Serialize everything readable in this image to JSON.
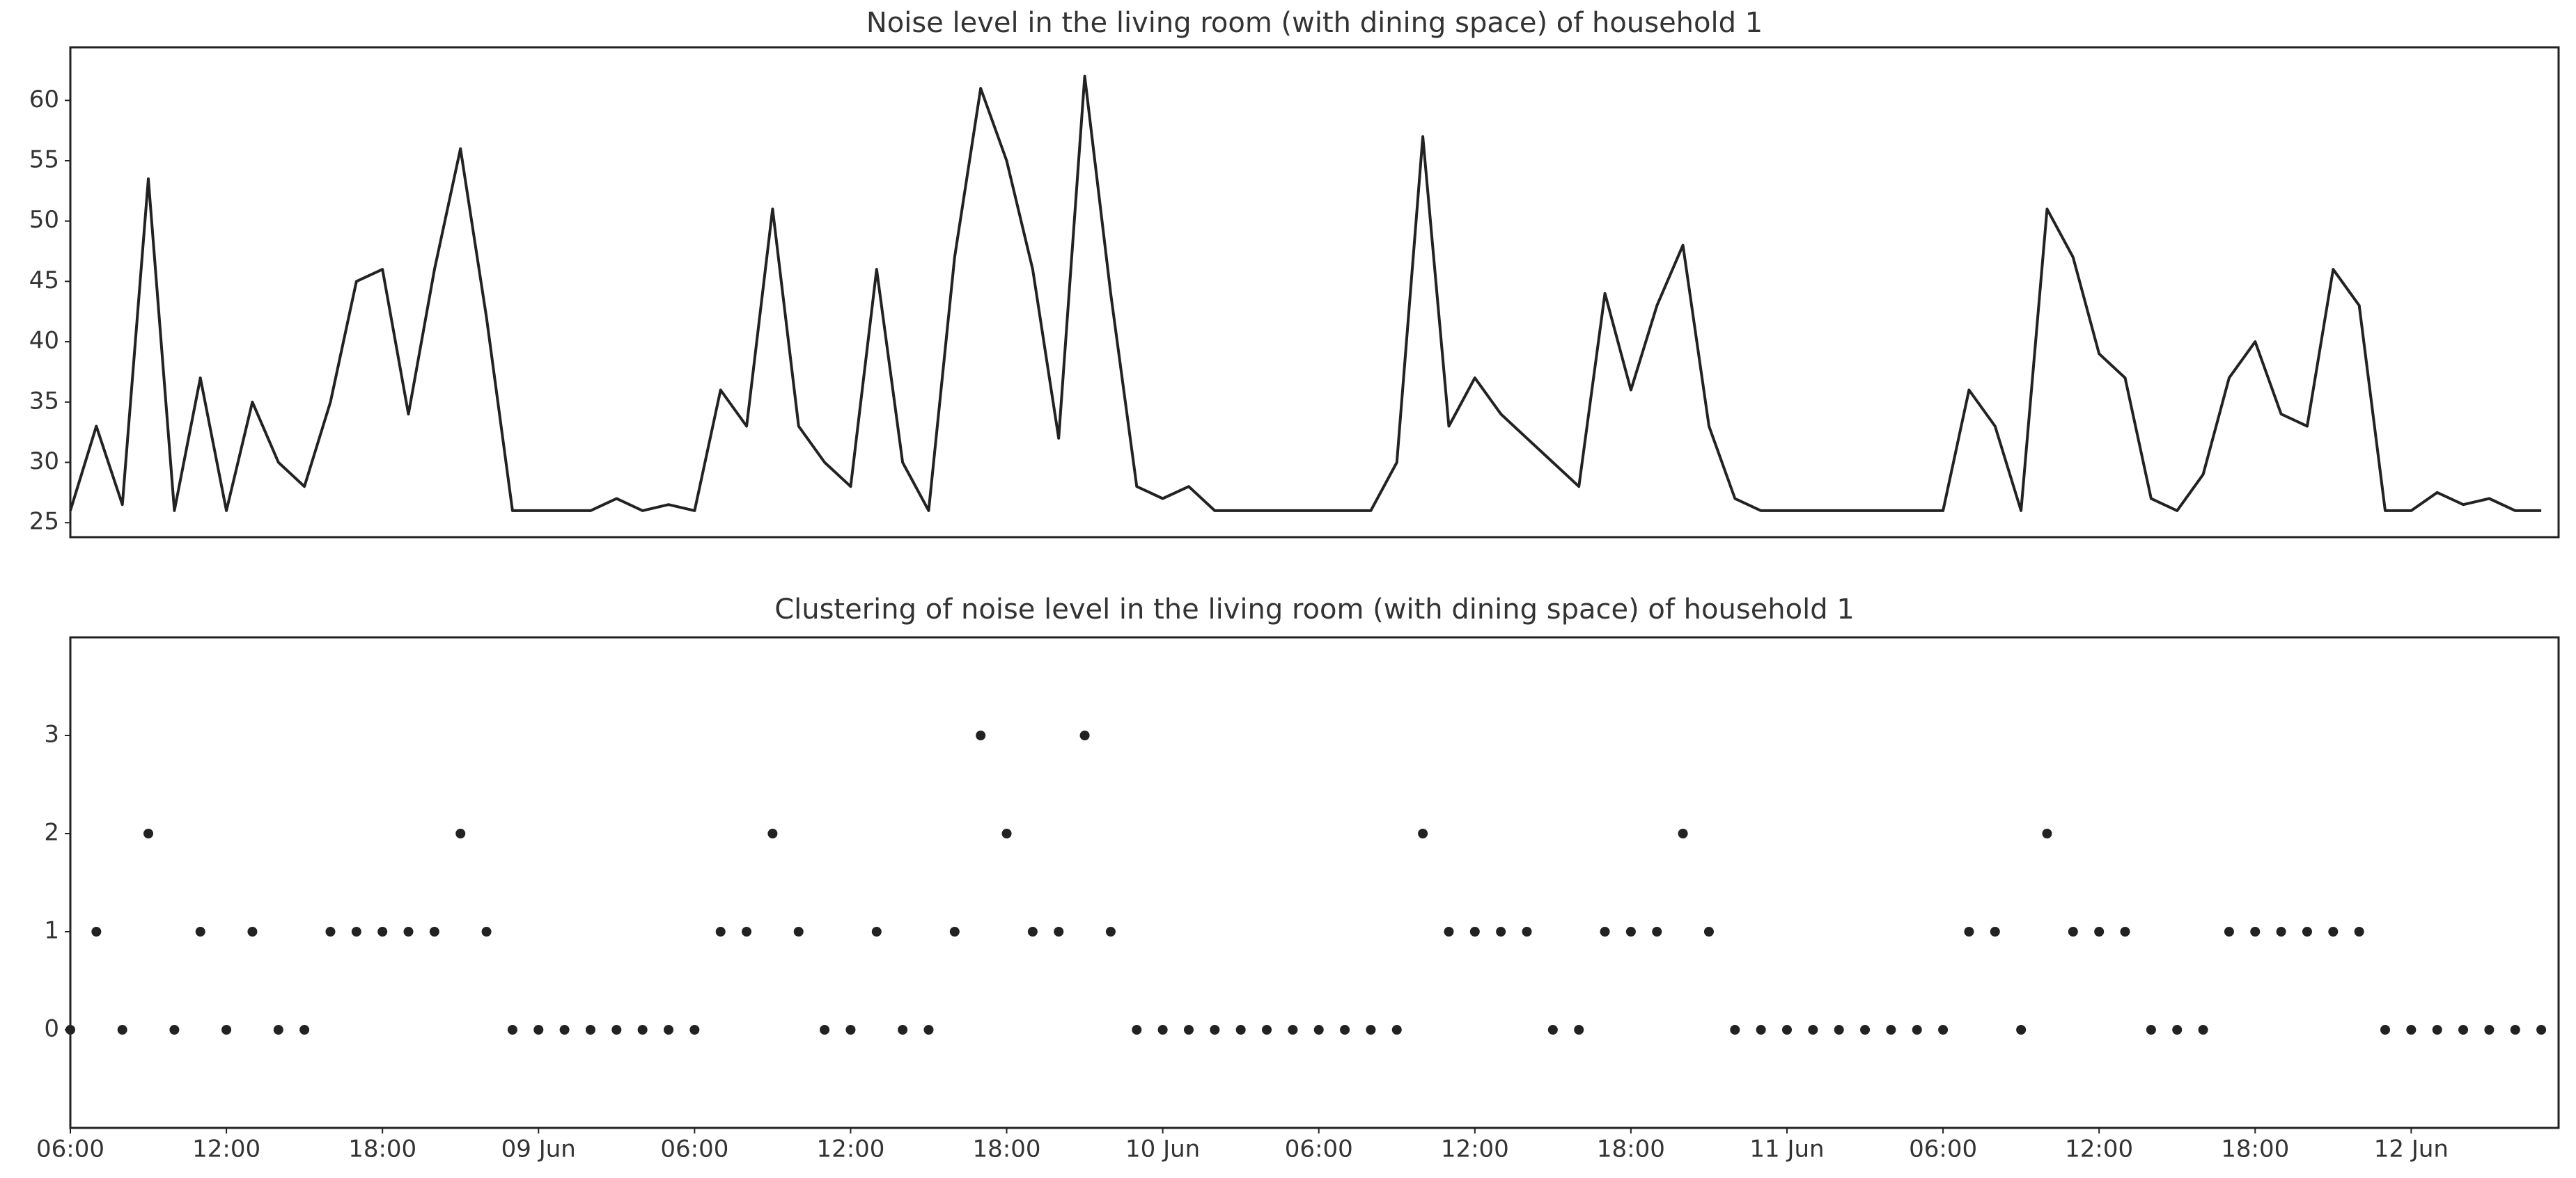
{
  "chart_data": [
    {
      "type": "line",
      "title": "Noise level in the living room (with dining space) of household 1",
      "x": [
        "08 Jun 06:00",
        "08 Jun 07:00",
        "08 Jun 08:00",
        "08 Jun 09:00",
        "08 Jun 10:00",
        "08 Jun 11:00",
        "08 Jun 12:00",
        "08 Jun 13:00",
        "08 Jun 14:00",
        "08 Jun 15:00",
        "08 Jun 16:00",
        "08 Jun 17:00",
        "08 Jun 18:00",
        "08 Jun 19:00",
        "08 Jun 20:00",
        "08 Jun 21:00",
        "08 Jun 22:00",
        "08 Jun 23:00",
        "09 Jun 00:00",
        "09 Jun 01:00",
        "09 Jun 02:00",
        "09 Jun 03:00",
        "09 Jun 04:00",
        "09 Jun 05:00",
        "09 Jun 06:00",
        "09 Jun 07:00",
        "09 Jun 08:00",
        "09 Jun 09:00",
        "09 Jun 10:00",
        "09 Jun 11:00",
        "09 Jun 12:00",
        "09 Jun 13:00",
        "09 Jun 14:00",
        "09 Jun 15:00",
        "09 Jun 16:00",
        "09 Jun 17:00",
        "09 Jun 18:00",
        "09 Jun 19:00",
        "09 Jun 20:00",
        "09 Jun 21:00",
        "09 Jun 22:00",
        "09 Jun 23:00",
        "10 Jun 00:00",
        "10 Jun 01:00",
        "10 Jun 02:00",
        "10 Jun 03:00",
        "10 Jun 04:00",
        "10 Jun 05:00",
        "10 Jun 06:00",
        "10 Jun 07:00",
        "10 Jun 08:00",
        "10 Jun 09:00",
        "10 Jun 10:00",
        "10 Jun 11:00",
        "10 Jun 12:00",
        "10 Jun 13:00",
        "10 Jun 14:00",
        "10 Jun 15:00",
        "10 Jun 16:00",
        "10 Jun 17:00",
        "10 Jun 18:00",
        "10 Jun 19:00",
        "10 Jun 20:00",
        "10 Jun 21:00",
        "10 Jun 22:00",
        "10 Jun 23:00",
        "11 Jun 00:00",
        "11 Jun 01:00",
        "11 Jun 02:00",
        "11 Jun 03:00",
        "11 Jun 04:00",
        "11 Jun 05:00",
        "11 Jun 06:00",
        "11 Jun 07:00",
        "11 Jun 08:00",
        "11 Jun 09:00",
        "11 Jun 10:00",
        "11 Jun 11:00",
        "11 Jun 12:00",
        "11 Jun 13:00",
        "11 Jun 14:00",
        "11 Jun 15:00",
        "11 Jun 16:00",
        "11 Jun 17:00",
        "11 Jun 18:00",
        "11 Jun 19:00",
        "11 Jun 20:00",
        "11 Jun 21:00",
        "11 Jun 22:00",
        "11 Jun 23:00",
        "12 Jun 00:00",
        "12 Jun 01:00",
        "12 Jun 02:00",
        "12 Jun 03:00",
        "12 Jun 04:00",
        "12 Jun 05:00"
      ],
      "values": [
        26,
        33,
        26.5,
        53.5,
        26,
        37,
        26,
        35,
        30,
        28,
        35,
        45,
        46,
        34,
        46,
        56,
        42,
        26,
        26,
        26,
        26,
        27,
        26,
        26.5,
        26,
        36,
        33,
        51,
        33,
        30,
        28,
        46,
        30,
        26,
        47,
        61,
        55,
        46,
        32,
        62,
        44,
        28,
        27,
        28,
        26,
        26,
        26,
        26,
        26,
        26,
        26,
        30,
        57,
        33,
        37,
        34,
        32,
        30,
        28,
        44,
        36,
        43,
        48,
        33,
        27,
        26,
        26,
        26,
        26,
        26,
        26,
        26,
        26,
        36,
        33,
        26,
        51,
        47,
        39,
        37,
        27,
        26,
        29,
        37,
        40,
        34,
        33,
        46,
        43,
        26,
        26,
        27.5,
        26.5,
        27,
        26,
        26
      ],
      "color": "#222222",
      "xlim": [
        "08 Jun 06:00",
        "12 Jun 05:40"
      ],
      "ylim": [
        23.8,
        64.4
      ],
      "yticks": [
        25,
        30,
        35,
        40,
        45,
        50,
        55,
        60
      ]
    },
    {
      "type": "scatter",
      "title": "Clustering of noise level in the living room (with dining space) of household 1",
      "x": [
        "08 Jun 06:00",
        "08 Jun 07:00",
        "08 Jun 08:00",
        "08 Jun 09:00",
        "08 Jun 10:00",
        "08 Jun 11:00",
        "08 Jun 12:00",
        "08 Jun 13:00",
        "08 Jun 14:00",
        "08 Jun 15:00",
        "08 Jun 16:00",
        "08 Jun 17:00",
        "08 Jun 18:00",
        "08 Jun 19:00",
        "08 Jun 20:00",
        "08 Jun 21:00",
        "08 Jun 22:00",
        "08 Jun 23:00",
        "09 Jun 00:00",
        "09 Jun 01:00",
        "09 Jun 02:00",
        "09 Jun 03:00",
        "09 Jun 04:00",
        "09 Jun 05:00",
        "09 Jun 06:00",
        "09 Jun 07:00",
        "09 Jun 08:00",
        "09 Jun 09:00",
        "09 Jun 10:00",
        "09 Jun 11:00",
        "09 Jun 12:00",
        "09 Jun 13:00",
        "09 Jun 14:00",
        "09 Jun 15:00",
        "09 Jun 16:00",
        "09 Jun 17:00",
        "09 Jun 18:00",
        "09 Jun 19:00",
        "09 Jun 20:00",
        "09 Jun 21:00",
        "09 Jun 22:00",
        "09 Jun 23:00",
        "10 Jun 00:00",
        "10 Jun 01:00",
        "10 Jun 02:00",
        "10 Jun 03:00",
        "10 Jun 04:00",
        "10 Jun 05:00",
        "10 Jun 06:00",
        "10 Jun 07:00",
        "10 Jun 08:00",
        "10 Jun 09:00",
        "10 Jun 10:00",
        "10 Jun 11:00",
        "10 Jun 12:00",
        "10 Jun 13:00",
        "10 Jun 14:00",
        "10 Jun 15:00",
        "10 Jun 16:00",
        "10 Jun 17:00",
        "10 Jun 18:00",
        "10 Jun 19:00",
        "10 Jun 20:00",
        "10 Jun 21:00",
        "10 Jun 22:00",
        "10 Jun 23:00",
        "11 Jun 00:00",
        "11 Jun 01:00",
        "11 Jun 02:00",
        "11 Jun 03:00",
        "11 Jun 04:00",
        "11 Jun 05:00",
        "11 Jun 06:00",
        "11 Jun 07:00",
        "11 Jun 08:00",
        "11 Jun 09:00",
        "11 Jun 10:00",
        "11 Jun 11:00",
        "11 Jun 12:00",
        "11 Jun 13:00",
        "11 Jun 14:00",
        "11 Jun 15:00",
        "11 Jun 16:00",
        "11 Jun 17:00",
        "11 Jun 18:00",
        "11 Jun 19:00",
        "11 Jun 20:00",
        "11 Jun 21:00",
        "11 Jun 22:00",
        "11 Jun 23:00",
        "12 Jun 00:00",
        "12 Jun 01:00",
        "12 Jun 02:00",
        "12 Jun 03:00",
        "12 Jun 04:00",
        "12 Jun 05:00"
      ],
      "values": [
        0,
        1,
        0,
        2,
        0,
        1,
        0,
        1,
        0,
        0,
        1,
        1,
        1,
        1,
        1,
        2,
        1,
        0,
        0,
        0,
        0,
        0,
        0,
        0,
        0,
        1,
        1,
        2,
        1,
        0,
        0,
        1,
        0,
        0,
        1,
        3,
        2,
        1,
        1,
        3,
        1,
        0,
        0,
        0,
        0,
        0,
        0,
        0,
        0,
        0,
        0,
        0,
        2,
        1,
        1,
        1,
        1,
        0,
        0,
        1,
        1,
        1,
        2,
        1,
        0,
        0,
        0,
        0,
        0,
        0,
        0,
        0,
        0,
        1,
        1,
        0,
        2,
        1,
        1,
        1,
        0,
        0,
        0,
        1,
        1,
        1,
        1,
        1,
        1,
        0,
        0,
        0,
        0,
        0,
        0,
        0
      ],
      "color": "#222222",
      "xlim": [
        "08 Jun 06:00",
        "12 Jun 05:40"
      ],
      "ylim": [
        -1,
        4
      ],
      "yticks": [
        0,
        1,
        2,
        3
      ],
      "xticks": [
        {
          "value": "08 Jun 06:00",
          "label": "06:00"
        },
        {
          "value": "08 Jun 12:00",
          "label": "12:00"
        },
        {
          "value": "08 Jun 18:00",
          "label": "18:00"
        },
        {
          "value": "09 Jun 00:00",
          "label": "09 Jun"
        },
        {
          "value": "09 Jun 06:00",
          "label": "06:00"
        },
        {
          "value": "09 Jun 12:00",
          "label": "12:00"
        },
        {
          "value": "09 Jun 18:00",
          "label": "18:00"
        },
        {
          "value": "10 Jun 00:00",
          "label": "10 Jun"
        },
        {
          "value": "10 Jun 06:00",
          "label": "06:00"
        },
        {
          "value": "10 Jun 12:00",
          "label": "12:00"
        },
        {
          "value": "10 Jun 18:00",
          "label": "18:00"
        },
        {
          "value": "11 Jun 00:00",
          "label": "11 Jun"
        },
        {
          "value": "11 Jun 06:00",
          "label": "06:00"
        },
        {
          "value": "11 Jun 12:00",
          "label": "12:00"
        },
        {
          "value": "11 Jun 18:00",
          "label": "18:00"
        },
        {
          "value": "12 Jun 00:00",
          "label": "12 Jun"
        }
      ]
    }
  ]
}
